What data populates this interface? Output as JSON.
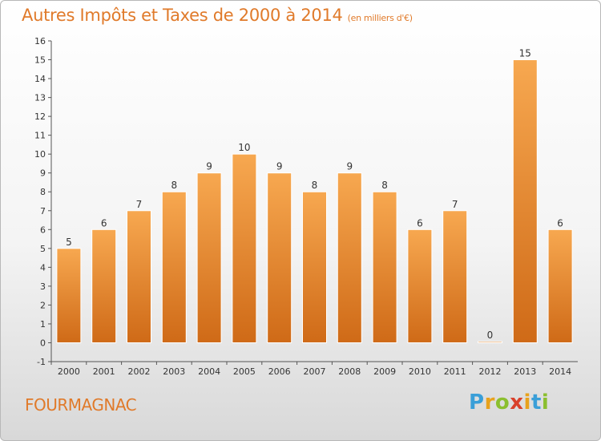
{
  "header": {
    "title": "Autres Impôts et Taxes de 2000 à 2014",
    "unit": "(en milliers d'€)"
  },
  "footer": {
    "commune": "FOURMAGNAC",
    "logo_letters": [
      "P",
      "r",
      "o",
      "x",
      "i",
      "t",
      "i"
    ],
    "logo_colors": [
      "#3a9fd8",
      "#e8a21d",
      "#8bbf2f",
      "#d9412b",
      "#e8a21d",
      "#3a9fd8",
      "#8bbf2f"
    ]
  },
  "colors": {
    "accent": "#e07a2a",
    "bar_top": "#f7a850",
    "bar_bottom": "#cf6a17",
    "bar_stroke": "#ffffff"
  },
  "chart_data": {
    "type": "bar",
    "categories": [
      "2000",
      "2001",
      "2002",
      "2003",
      "2004",
      "2005",
      "2006",
      "2007",
      "2008",
      "2009",
      "2010",
      "2011",
      "2012",
      "2013",
      "2014"
    ],
    "values": [
      5,
      6,
      7,
      8,
      9,
      10,
      9,
      8,
      9,
      8,
      6,
      7,
      0,
      15,
      6
    ],
    "data_labels": [
      "5",
      "6",
      "7",
      "8",
      "9",
      "10",
      "9",
      "8",
      "9",
      "8",
      "6",
      "7",
      "0",
      "15",
      "6"
    ],
    "y_ticks": [
      "-1",
      "0",
      "1",
      "2",
      "3",
      "4",
      "5",
      "6",
      "7",
      "8",
      "9",
      "10",
      "11",
      "12",
      "13",
      "14",
      "15",
      "16"
    ],
    "ylim": [
      -1,
      16
    ],
    "grid": false,
    "title": "Autres Impôts et Taxes de 2000 à 2014",
    "xlabel": "",
    "ylabel": ""
  }
}
